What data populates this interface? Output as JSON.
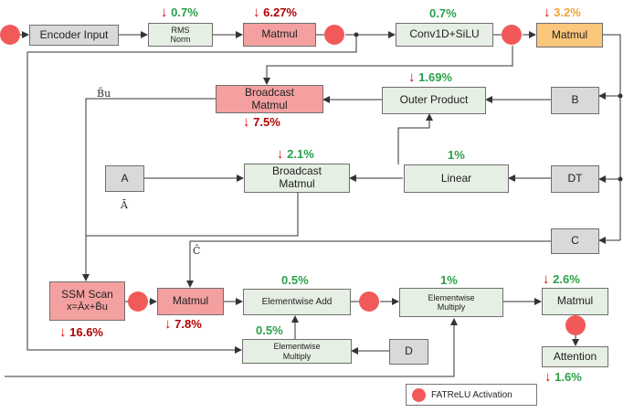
{
  "nodes": {
    "encoder_input": "Encoder Input",
    "rms_norm_1": "RMS",
    "rms_norm_2": "Norm",
    "matmul_1": "Matmul",
    "conv": "Conv1D+SiLU",
    "matmul_2": "Matmul",
    "broadcast_matmul_1a": "Broadcast",
    "broadcast_matmul_1b": "Matmul",
    "outer_product": "Outer Product",
    "b": "B",
    "a": "A",
    "broadcast_matmul_2a": "Broadcast",
    "broadcast_matmul_2b": "Matmul",
    "linear": "Linear",
    "dt": "DT",
    "c": "C",
    "ssm_scan_1": "SSM Scan",
    "ssm_scan_2": "x=Āx+B̄u",
    "matmul_3": "Matmul",
    "elementwise_add": "Elementwise Add",
    "elementwise_multiply_1a": "Elementwise",
    "elementwise_multiply_1b": "Multiply",
    "matmul_4": "Matmul",
    "attention": "Attention",
    "elementwise_multiply_2a": "Elementwise",
    "elementwise_multiply_2b": "Multiply",
    "d": "D"
  },
  "labels": {
    "rms_norm": {
      "arrow": "↓",
      "value": "0.7%"
    },
    "matmul_1": {
      "arrow": "↓",
      "value": "6.27%"
    },
    "conv": {
      "arrow": "",
      "value": "0.7%"
    },
    "matmul_2": {
      "arrow": "↓",
      "value": "3.2%"
    },
    "outer_product": {
      "arrow": "↓",
      "value": "1.69%"
    },
    "broadcast_matmul_1": {
      "arrow": "↓",
      "value": "7.5%"
    },
    "broadcast_matmul_2": {
      "arrow": "↓",
      "value": "2.1%"
    },
    "linear": {
      "arrow": "",
      "value": "1%"
    },
    "ssm_scan": {
      "arrow": "↓",
      "value": "16.6%"
    },
    "matmul_3": {
      "arrow": "↓",
      "value": "7.8%"
    },
    "elementwise_add": {
      "arrow": "",
      "value": "0.5%"
    },
    "elementwise_multiply_2": {
      "arrow": "",
      "value": "0.5%"
    },
    "elementwise_multiply_1": {
      "arrow": "",
      "value": "1%"
    },
    "matmul_4": {
      "arrow": "↓",
      "value": "2.6%"
    },
    "attention": {
      "arrow": "↓",
      "value": "1.6%"
    }
  },
  "symbols": {
    "bu": "B̄u",
    "a_bar": "Ā",
    "c_bar": "C̄"
  },
  "legend": {
    "label": "FATReLU Activation"
  },
  "colors": {
    "activation": "#f25a5a",
    "increase": "#2aa14a",
    "decrease": "#b00000",
    "decrease_arrow": "#e00000",
    "orange_value": "#f2a33a"
  }
}
